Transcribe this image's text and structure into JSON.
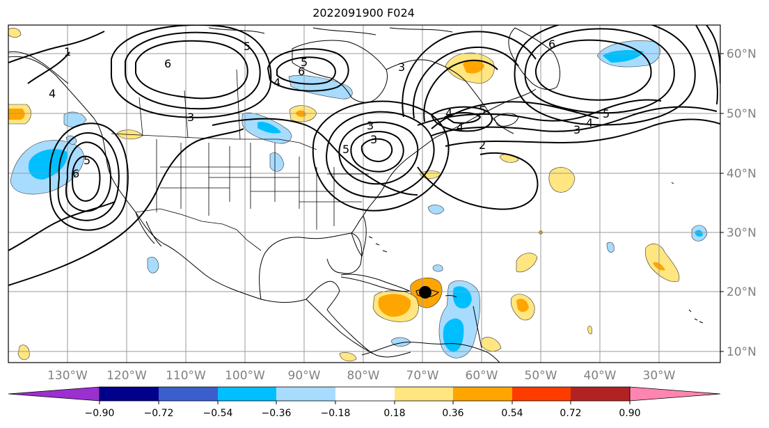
{
  "title": "2022091900 F024",
  "lon_labels": [
    "130°W",
    "120°W",
    "110°W",
    "100°W",
    "90°W",
    "80°W",
    "70°W",
    "60°W",
    "50°W",
    "40°W",
    "30°W"
  ],
  "lat_labels": [
    "60°N",
    "50°N",
    "40°N",
    "30°N",
    "20°N",
    "10°N"
  ],
  "colorbar": {
    "tick_labels": [
      "−0.90",
      "−0.72",
      "−0.54",
      "−0.36",
      "−0.18",
      "0.18",
      "0.36",
      "0.54",
      "0.72",
      "0.90"
    ],
    "colors": [
      "#9b30d0",
      "#00008b",
      "#3a5fcd",
      "#00bfff",
      "#a8dcff",
      "#ffffff",
      "#ffe680",
      "#ffa500",
      "#ff3c00",
      "#b22222",
      "#ff85b0"
    ]
  },
  "contour_labels": [
    "1",
    "6",
    "5",
    "5",
    "4",
    "3",
    "3",
    "3",
    "4",
    "5",
    "5",
    "6",
    "4",
    "6",
    "2",
    "3",
    "4",
    "5",
    "6",
    "3",
    "4",
    "5"
  ],
  "colors": {
    "positive_light": "#ffe680",
    "positive_mid": "#ffa500",
    "positive_strong": "#ff3c00",
    "negative_light": "#a8dcff",
    "negative_mid": "#00bfff"
  },
  "markers": [
    "storm-center-dot"
  ]
}
